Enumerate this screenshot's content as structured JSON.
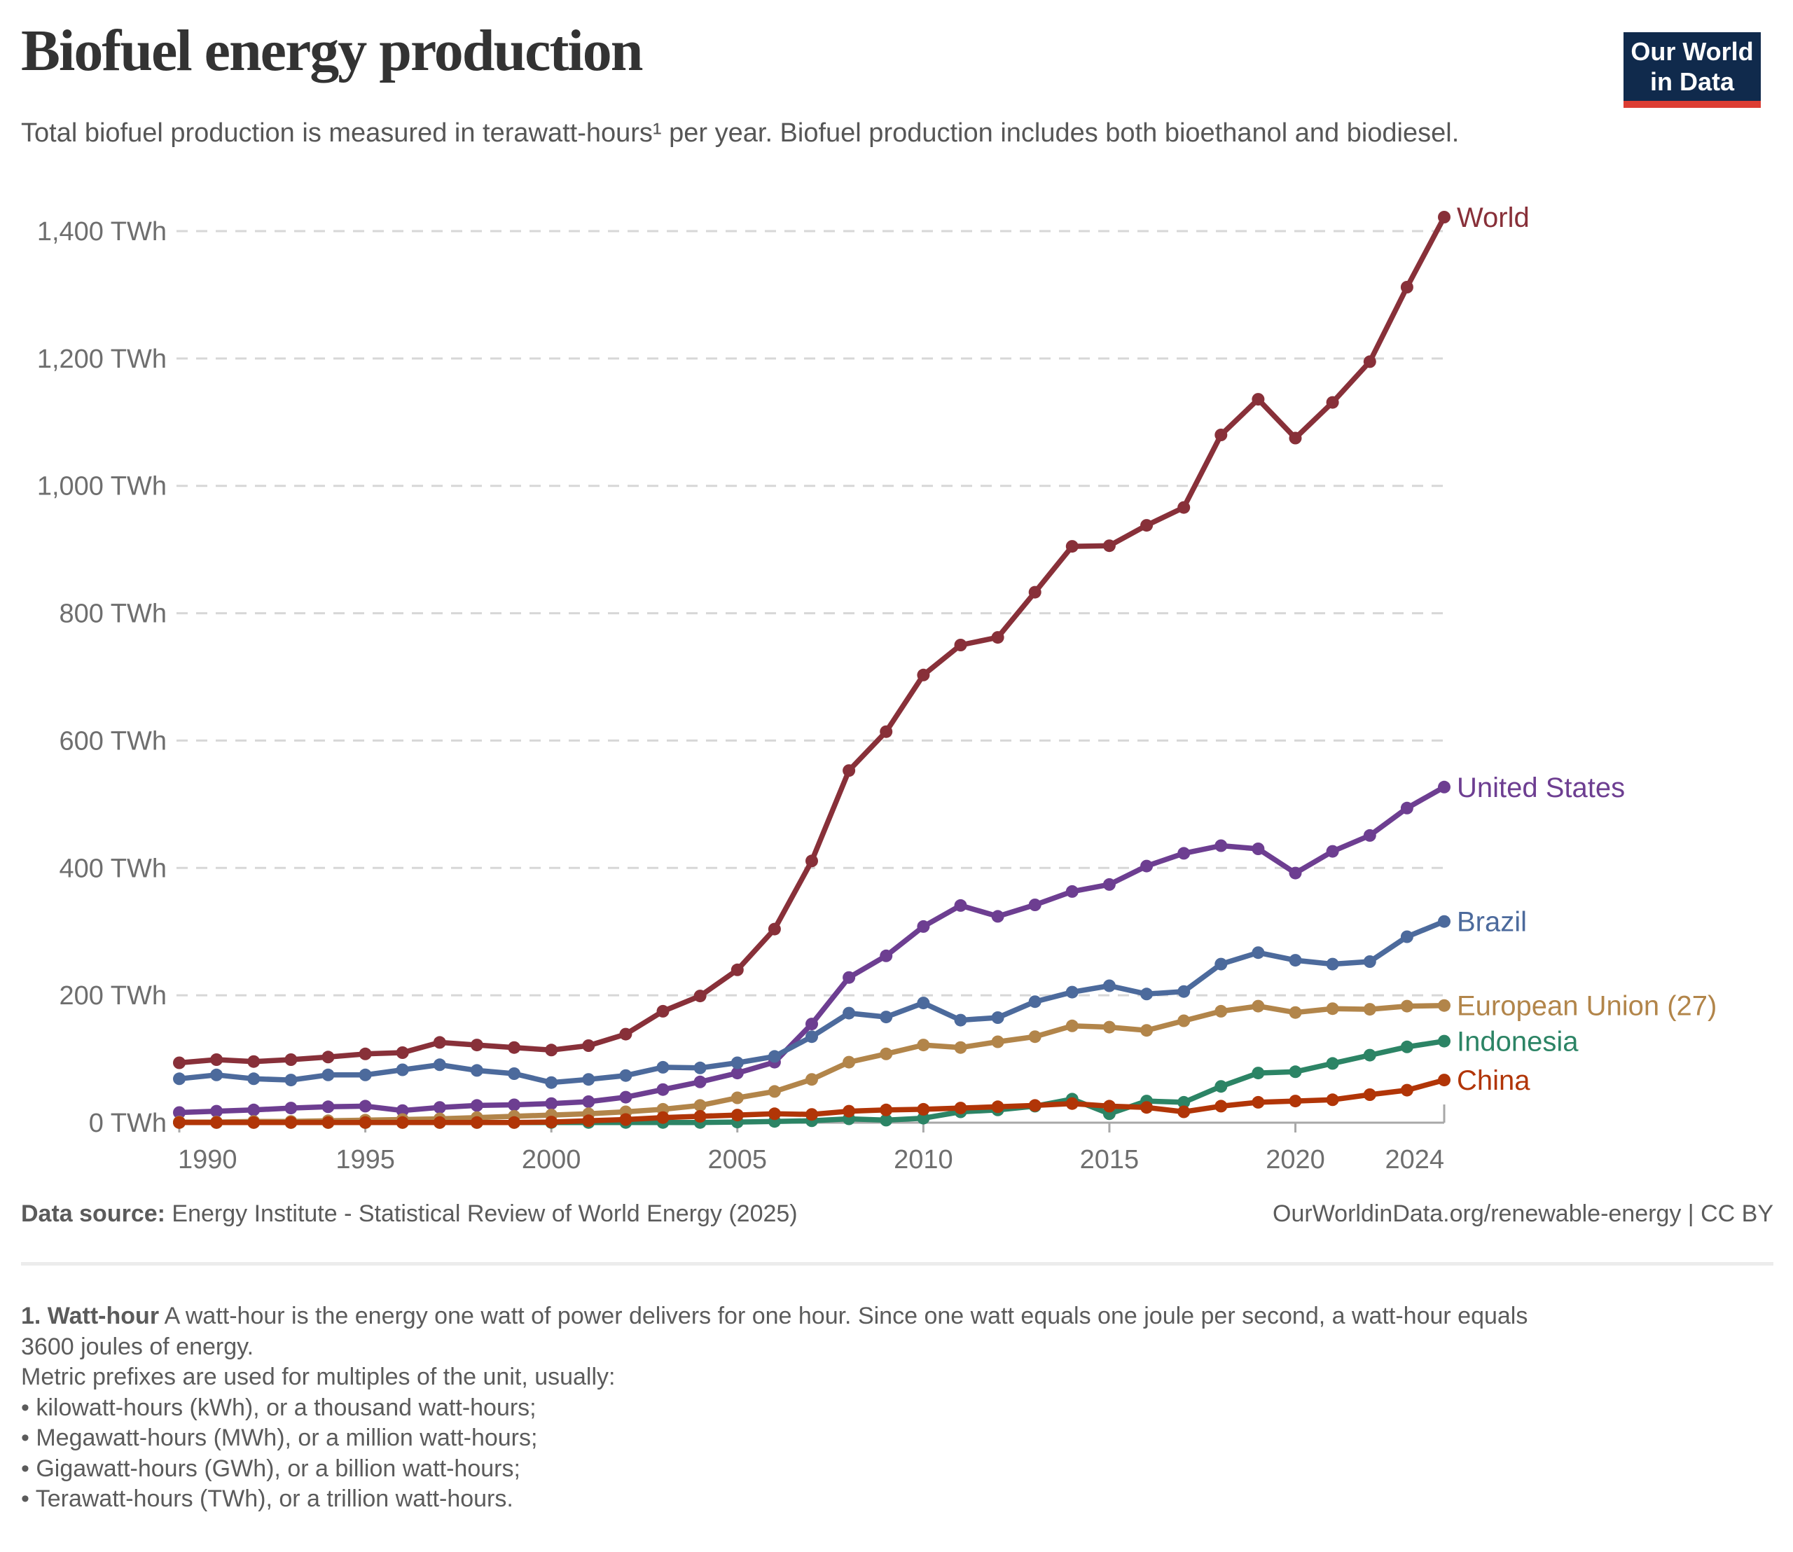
{
  "header": {
    "title": "Biofuel energy production",
    "subtitle": "Total biofuel production is measured in terawatt-hours¹ per year. Biofuel production includes both bioethanol and biodiesel.",
    "logo": {
      "line1": "Our World",
      "line2": "in Data",
      "bg_color": "#102A4C",
      "accent_color": "#DC3D33"
    }
  },
  "chart_data": {
    "type": "line",
    "title": "Biofuel energy production",
    "xlabel": "",
    "ylabel": "",
    "unit": "TWh",
    "xlim": [
      1990,
      2024
    ],
    "ylim": [
      0,
      1450
    ],
    "grid": "horizontal dashed",
    "legend": "end-of-line labels, right side",
    "x": [
      1990,
      1991,
      1992,
      1993,
      1994,
      1995,
      1996,
      1997,
      1998,
      1999,
      2000,
      2001,
      2002,
      2003,
      2004,
      2005,
      2006,
      2007,
      2008,
      2009,
      2010,
      2011,
      2012,
      2013,
      2014,
      2015,
      2016,
      2017,
      2018,
      2019,
      2020,
      2021,
      2022,
      2023,
      2024
    ],
    "x_ticks": [
      {
        "value": 1990,
        "label": "1990"
      },
      {
        "value": 1995,
        "label": "1995"
      },
      {
        "value": 2000,
        "label": "2000"
      },
      {
        "value": 2005,
        "label": "2005"
      },
      {
        "value": 2010,
        "label": "2010"
      },
      {
        "value": 2015,
        "label": "2015"
      },
      {
        "value": 2020,
        "label": "2020"
      },
      {
        "value": 2024,
        "label": "2024"
      }
    ],
    "y_ticks": [
      {
        "value": 0,
        "label": "0 TWh"
      },
      {
        "value": 200,
        "label": "200 TWh"
      },
      {
        "value": 400,
        "label": "400 TWh"
      },
      {
        "value": 600,
        "label": "600 TWh"
      },
      {
        "value": 800,
        "label": "800 TWh"
      },
      {
        "value": 1000,
        "label": "1,000 TWh"
      },
      {
        "value": 1200,
        "label": "1,200 TWh"
      },
      {
        "value": 1400,
        "label": "1,400 TWh"
      }
    ],
    "series": [
      {
        "name": "World",
        "color": "#883039",
        "values": [
          94,
          99,
          96,
          99,
          103,
          108,
          110,
          126,
          122,
          118,
          114,
          121,
          139,
          175,
          199,
          240,
          304,
          411,
          553,
          614,
          703,
          750,
          762,
          833,
          905,
          906,
          938,
          966,
          1080,
          1136,
          1075,
          1131,
          1195,
          1312,
          1422
        ]
      },
      {
        "name": "United States",
        "color": "#6D3E91",
        "values": [
          16,
          18,
          20,
          23,
          25,
          26,
          19,
          24,
          27,
          28,
          30,
          33,
          40,
          52,
          64,
          78,
          95,
          155,
          228,
          262,
          308,
          341,
          324,
          342,
          363,
          374,
          403,
          423,
          435,
          430,
          392,
          426,
          451,
          494,
          527
        ]
      },
      {
        "name": "Brazil",
        "color": "#4C6A9C",
        "values": [
          69,
          75,
          69,
          67,
          75,
          75,
          83,
          91,
          82,
          77,
          63,
          68,
          74,
          87,
          86,
          94,
          104,
          135,
          172,
          166,
          188,
          161,
          165,
          190,
          205,
          215,
          202,
          206,
          249,
          267,
          255,
          249,
          253,
          292,
          316
        ]
      },
      {
        "name": "Indonesia",
        "color": "#2C8465",
        "values": [
          0.3,
          0.3,
          0.3,
          0.3,
          0.3,
          0.3,
          0.3,
          0.3,
          0.3,
          0.3,
          0.3,
          0.3,
          0.3,
          0.3,
          0.3,
          1,
          2,
          3,
          6,
          4,
          7,
          17,
          20,
          26,
          37,
          14,
          34,
          32,
          57,
          78,
          80,
          93,
          106,
          119,
          128
        ]
      },
      {
        "name": "European Union (27)",
        "color": "#B2854A",
        "values": [
          1,
          1,
          2,
          2,
          3,
          4,
          5,
          6,
          8,
          10,
          12,
          14,
          17,
          21,
          27,
          39,
          49,
          68,
          95,
          108,
          122,
          118,
          127,
          135,
          152,
          150,
          145,
          160,
          175,
          183,
          173,
          179,
          178,
          183,
          184
        ]
      },
      {
        "name": "China",
        "color": "#B13507",
        "values": [
          0.2,
          0.2,
          0.2,
          0.2,
          0.2,
          0.2,
          0.2,
          0.2,
          0.2,
          0.2,
          1,
          3,
          5,
          8,
          10,
          12,
          14,
          13,
          18,
          20,
          21,
          23,
          25,
          27,
          30,
          26,
          24,
          17,
          26,
          32,
          34,
          36,
          44,
          51,
          67
        ]
      }
    ]
  },
  "footer": {
    "source_label": "Data source:",
    "source_text": " Energy Institute - Statistical Review of World Energy (2025)",
    "rights": "OurWorldinData.org/renewable-energy | CC BY"
  },
  "footnote": {
    "l1_bold": "1. Watt-hour",
    "l1_rest": " A watt-hour is the energy one watt of power delivers for one hour. Since one watt equals one joule per second, a watt-hour equals",
    "l2": "3600 joules of energy.",
    "l3": "Metric prefixes are used for multiples of the unit, usually:",
    "bullets": [
      "• kilowatt-hours (kWh), or a thousand watt-hours;",
      "• Megawatt-hours (MWh), or a million watt-hours;",
      "• Gigawatt-hours (GWh), or a billion watt-hours;",
      "• Terawatt-hours (TWh), or a trillion watt-hours."
    ]
  }
}
